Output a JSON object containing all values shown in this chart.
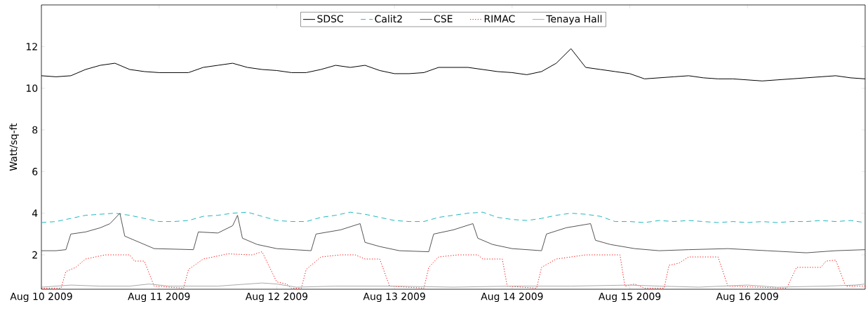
{
  "chart_data": {
    "type": "line",
    "ylabel": "Watt/sq-ft",
    "xlim": [
      "2009-08-10",
      "2009-08-17"
    ],
    "ylim": [
      0.35,
      14
    ],
    "yticks": [
      2,
      4,
      6,
      8,
      10,
      12
    ],
    "xticks": [
      {
        "value": "2009-08-10",
        "label": "Aug 10 2009"
      },
      {
        "value": "2009-08-11",
        "label": "Aug 11 2009"
      },
      {
        "value": "2009-08-12",
        "label": "Aug 12 2009"
      },
      {
        "value": "2009-08-13",
        "label": "Aug 13 2009"
      },
      {
        "value": "2009-08-14",
        "label": "Aug 14 2009"
      },
      {
        "value": "2009-08-15",
        "label": "Aug 15 2009"
      },
      {
        "value": "2009-08-16",
        "label": "Aug 16 2009"
      }
    ],
    "legend": "top",
    "grid": false,
    "series": [
      {
        "name": "SDSC",
        "color": "#000000",
        "line_style": "solid",
        "x": [
          "2009-08-10T00:00",
          "2009-08-10T03:00",
          "2009-08-10T06:00",
          "2009-08-10T09:00",
          "2009-08-10T12:00",
          "2009-08-10T15:00",
          "2009-08-10T18:00",
          "2009-08-10T21:00",
          "2009-08-11T00:00",
          "2009-08-11T03:00",
          "2009-08-11T06:00",
          "2009-08-11T09:00",
          "2009-08-11T12:00",
          "2009-08-11T15:00",
          "2009-08-11T18:00",
          "2009-08-11T21:00",
          "2009-08-12T00:00",
          "2009-08-12T03:00",
          "2009-08-12T06:00",
          "2009-08-12T09:00",
          "2009-08-12T12:00",
          "2009-08-12T15:00",
          "2009-08-12T18:00",
          "2009-08-12T21:00",
          "2009-08-13T00:00",
          "2009-08-13T03:00",
          "2009-08-13T06:00",
          "2009-08-13T09:00",
          "2009-08-13T12:00",
          "2009-08-13T15:00",
          "2009-08-13T18:00",
          "2009-08-13T21:00",
          "2009-08-14T00:00",
          "2009-08-14T03:00",
          "2009-08-14T06:00",
          "2009-08-14T09:00",
          "2009-08-14T12:00",
          "2009-08-14T15:00",
          "2009-08-14T18:00",
          "2009-08-14T21:00",
          "2009-08-15T00:00",
          "2009-08-15T03:00",
          "2009-08-15T06:00",
          "2009-08-15T09:00",
          "2009-08-15T12:00",
          "2009-08-15T15:00",
          "2009-08-15T18:00",
          "2009-08-15T21:00",
          "2009-08-16T00:00",
          "2009-08-16T03:00",
          "2009-08-16T06:00",
          "2009-08-16T09:00",
          "2009-08-16T12:00",
          "2009-08-16T15:00",
          "2009-08-16T18:00",
          "2009-08-16T21:00",
          "2009-08-17T00:00"
        ],
        "values": [
          10.6,
          10.55,
          10.6,
          10.9,
          11.1,
          11.2,
          10.9,
          10.8,
          10.75,
          10.75,
          10.75,
          11.0,
          11.1,
          11.2,
          11.0,
          10.9,
          10.85,
          10.75,
          10.75,
          10.9,
          11.1,
          11.0,
          11.1,
          10.85,
          10.7,
          10.7,
          10.75,
          11.0,
          11.0,
          11.0,
          10.9,
          10.8,
          10.75,
          10.65,
          10.8,
          11.2,
          11.9,
          11.0,
          10.9,
          10.8,
          10.7,
          10.45,
          10.5,
          10.55,
          10.6,
          10.5,
          10.45,
          10.45,
          10.4,
          10.35,
          10.4,
          10.45,
          10.5,
          10.55,
          10.6,
          10.5,
          10.45
        ]
      },
      {
        "name": "Calit2",
        "color": "#20b8c0",
        "line_style": "dashed",
        "x": [
          "2009-08-10T00:00",
          "2009-08-10T03:00",
          "2009-08-10T06:00",
          "2009-08-10T09:00",
          "2009-08-10T12:00",
          "2009-08-10T15:00",
          "2009-08-10T18:00",
          "2009-08-10T21:00",
          "2009-08-11T00:00",
          "2009-08-11T03:00",
          "2009-08-11T06:00",
          "2009-08-11T09:00",
          "2009-08-11T12:00",
          "2009-08-11T15:00",
          "2009-08-11T18:00",
          "2009-08-11T21:00",
          "2009-08-12T00:00",
          "2009-08-12T03:00",
          "2009-08-12T06:00",
          "2009-08-12T09:00",
          "2009-08-12T12:00",
          "2009-08-12T15:00",
          "2009-08-12T18:00",
          "2009-08-12T21:00",
          "2009-08-13T00:00",
          "2009-08-13T03:00",
          "2009-08-13T06:00",
          "2009-08-13T09:00",
          "2009-08-13T12:00",
          "2009-08-13T15:00",
          "2009-08-13T18:00",
          "2009-08-13T21:00",
          "2009-08-14T00:00",
          "2009-08-14T03:00",
          "2009-08-14T06:00",
          "2009-08-14T09:00",
          "2009-08-14T12:00",
          "2009-08-14T15:00",
          "2009-08-14T18:00",
          "2009-08-14T21:00",
          "2009-08-15T00:00",
          "2009-08-15T03:00",
          "2009-08-15T06:00",
          "2009-08-15T09:00",
          "2009-08-15T12:00",
          "2009-08-15T15:00",
          "2009-08-15T18:00",
          "2009-08-15T21:00",
          "2009-08-16T00:00",
          "2009-08-16T03:00",
          "2009-08-16T06:00",
          "2009-08-16T09:00",
          "2009-08-16T12:00",
          "2009-08-16T15:00",
          "2009-08-16T18:00",
          "2009-08-16T21:00",
          "2009-08-17T00:00"
        ],
        "values": [
          3.55,
          3.6,
          3.75,
          3.9,
          3.95,
          4.0,
          3.9,
          3.75,
          3.6,
          3.6,
          3.65,
          3.85,
          3.9,
          4.0,
          4.05,
          3.85,
          3.65,
          3.6,
          3.6,
          3.8,
          3.9,
          4.05,
          3.95,
          3.8,
          3.65,
          3.6,
          3.6,
          3.8,
          3.9,
          4.0,
          4.05,
          3.8,
          3.7,
          3.65,
          3.75,
          3.9,
          4.0,
          3.95,
          3.85,
          3.6,
          3.6,
          3.55,
          3.65,
          3.6,
          3.65,
          3.6,
          3.55,
          3.6,
          3.55,
          3.6,
          3.55,
          3.6,
          3.6,
          3.65,
          3.6,
          3.65,
          3.55
        ]
      },
      {
        "name": "CSE",
        "color": "#555555",
        "line_style": "solid",
        "x": [
          "2009-08-10T00:00",
          "2009-08-10T03:00",
          "2009-08-10T05:00",
          "2009-08-10T06:00",
          "2009-08-10T09:00",
          "2009-08-10T12:00",
          "2009-08-10T14:00",
          "2009-08-10T16:00",
          "2009-08-10T17:00",
          "2009-08-10T20:00",
          "2009-08-10T23:00",
          "2009-08-11T07:00",
          "2009-08-11T08:00",
          "2009-08-11T12:00",
          "2009-08-11T15:00",
          "2009-08-11T16:00",
          "2009-08-11T17:00",
          "2009-08-11T20:00",
          "2009-08-12T00:00",
          "2009-08-12T07:00",
          "2009-08-12T08:00",
          "2009-08-12T13:00",
          "2009-08-12T17:00",
          "2009-08-12T18:00",
          "2009-08-12T21:00",
          "2009-08-13T01:00",
          "2009-08-13T07:00",
          "2009-08-13T08:00",
          "2009-08-13T12:00",
          "2009-08-13T16:00",
          "2009-08-13T17:00",
          "2009-08-13T20:00",
          "2009-08-14T00:00",
          "2009-08-14T06:00",
          "2009-08-14T07:00",
          "2009-08-14T11:00",
          "2009-08-14T16:00",
          "2009-08-14T17:00",
          "2009-08-14T20:00",
          "2009-08-15T01:00",
          "2009-08-15T06:00",
          "2009-08-15T12:00",
          "2009-08-15T20:00",
          "2009-08-16T04:00",
          "2009-08-16T12:00",
          "2009-08-16T18:00",
          "2009-08-17T00:00"
        ],
        "values": [
          2.2,
          2.2,
          2.25,
          3.0,
          3.1,
          3.3,
          3.5,
          4.0,
          2.9,
          2.6,
          2.3,
          2.25,
          3.1,
          3.05,
          3.4,
          3.9,
          2.8,
          2.5,
          2.3,
          2.2,
          3.0,
          3.2,
          3.5,
          2.6,
          2.4,
          2.2,
          2.15,
          3.0,
          3.2,
          3.5,
          2.8,
          2.5,
          2.3,
          2.2,
          3.0,
          3.3,
          3.5,
          2.7,
          2.5,
          2.3,
          2.2,
          2.25,
          2.3,
          2.2,
          2.1,
          2.2,
          2.25
        ]
      },
      {
        "name": "RIMAC",
        "color": "#ff0000",
        "line_style": "dotted",
        "x": [
          "2009-08-10T00:00",
          "2009-08-10T04:00",
          "2009-08-10T05:00",
          "2009-08-10T07:00",
          "2009-08-10T09:00",
          "2009-08-10T13:00",
          "2009-08-10T18:00",
          "2009-08-10T19:00",
          "2009-08-10T21:00",
          "2009-08-10T23:00",
          "2009-08-11T05:00",
          "2009-08-11T06:00",
          "2009-08-11T09:00",
          "2009-08-11T14:00",
          "2009-08-11T19:00",
          "2009-08-11T21:00",
          "2009-08-12T00:00",
          "2009-08-12T02:00",
          "2009-08-12T03:00",
          "2009-08-12T05:00",
          "2009-08-12T06:00",
          "2009-08-12T09:00",
          "2009-08-12T13:00",
          "2009-08-12T16:00",
          "2009-08-12T18:00",
          "2009-08-12T21:00",
          "2009-08-12T23:00",
          "2009-08-13T06:00",
          "2009-08-13T07:00",
          "2009-08-13T09:00",
          "2009-08-13T13:00",
          "2009-08-13T17:00",
          "2009-08-13T18:00",
          "2009-08-13T22:00",
          "2009-08-13T23:00",
          "2009-08-14T05:00",
          "2009-08-14T06:00",
          "2009-08-14T09:00",
          "2009-08-14T15:00",
          "2009-08-14T22:00",
          "2009-08-14T23:00",
          "2009-08-15T01:00",
          "2009-08-15T03:00",
          "2009-08-15T07:00",
          "2009-08-15T08:00",
          "2009-08-15T10:00",
          "2009-08-15T12:00",
          "2009-08-15T18:00",
          "2009-08-15T20:00",
          "2009-08-16T08:00",
          "2009-08-16T10:00",
          "2009-08-16T15:00",
          "2009-08-16T16:00",
          "2009-08-16T18:00",
          "2009-08-16T20:00",
          "2009-08-17T00:00"
        ],
        "values": [
          0.4,
          0.4,
          1.2,
          1.4,
          1.8,
          2.0,
          2.0,
          1.7,
          1.7,
          0.5,
          0.4,
          1.3,
          1.8,
          2.05,
          2.0,
          2.15,
          0.7,
          0.6,
          0.4,
          0.4,
          1.3,
          1.9,
          2.0,
          2.0,
          1.8,
          1.8,
          0.5,
          0.4,
          1.4,
          1.9,
          2.0,
          2.0,
          1.8,
          1.8,
          0.5,
          0.4,
          1.4,
          1.8,
          2.0,
          2.0,
          0.5,
          0.6,
          0.4,
          0.4,
          1.5,
          1.6,
          1.9,
          1.9,
          0.5,
          0.4,
          1.4,
          1.4,
          1.7,
          1.75,
          0.5,
          0.5
        ]
      },
      {
        "name": "Tenaya Hall",
        "color": "#aaaaaa",
        "line_style": "solid",
        "x": [
          "2009-08-10T00:00",
          "2009-08-10T06:00",
          "2009-08-10T12:00",
          "2009-08-10T18:00",
          "2009-08-10T22:00",
          "2009-08-11T02:00",
          "2009-08-11T12:00",
          "2009-08-11T21:00",
          "2009-08-12T00:00",
          "2009-08-12T04:00",
          "2009-08-12T12:00",
          "2009-08-13T00:00",
          "2009-08-13T12:00",
          "2009-08-14T00:00",
          "2009-08-14T12:00",
          "2009-08-15T00:00",
          "2009-08-15T06:00",
          "2009-08-15T14:00",
          "2009-08-16T00:00",
          "2009-08-16T06:00",
          "2009-08-16T16:00",
          "2009-08-16T22:00",
          "2009-08-17T00:00"
        ],
        "values": [
          0.45,
          0.55,
          0.5,
          0.5,
          0.6,
          0.5,
          0.5,
          0.65,
          0.6,
          0.45,
          0.5,
          0.5,
          0.45,
          0.5,
          0.5,
          0.55,
          0.5,
          0.45,
          0.55,
          0.45,
          0.5,
          0.55,
          0.6
        ]
      }
    ]
  }
}
